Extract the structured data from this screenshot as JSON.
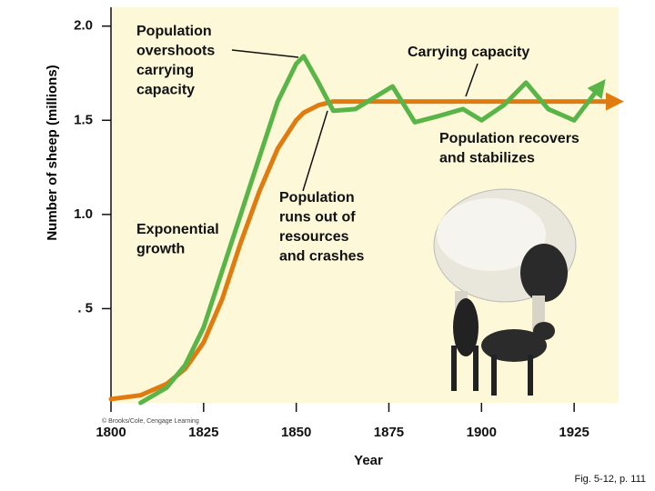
{
  "chart_data": {
    "type": "line",
    "x_label": "Year",
    "y_label": "Number of sheep (millions)",
    "x": [
      1800,
      1808,
      1815,
      1820,
      1825,
      1830,
      1835,
      1840,
      1845,
      1850,
      1852,
      1856,
      1860,
      1866,
      1871,
      1876,
      1882,
      1888,
      1895,
      1900,
      1906,
      1912,
      1918,
      1925,
      1932,
      1936
    ],
    "series": [
      {
        "color": "#59b548",
        "values": [
          null,
          0.0,
          0.08,
          0.2,
          0.4,
          0.7,
          1.0,
          1.3,
          1.6,
          1.8,
          1.84,
          1.7,
          1.55,
          1.56,
          1.62,
          1.68,
          1.49,
          1.52,
          1.56,
          1.5,
          1.58,
          1.7,
          1.56,
          1.5,
          1.68,
          null
        ]
      },
      {
        "name": "Carrying capacity",
        "color": "#e07b10",
        "values": [
          0.02,
          0.04,
          0.1,
          0.18,
          0.32,
          0.55,
          0.85,
          1.12,
          1.35,
          1.5,
          1.54,
          1.58,
          1.6,
          1.6,
          1.6,
          1.6,
          1.6,
          1.6,
          1.6,
          1.6,
          1.6,
          1.6,
          1.6,
          1.6,
          1.6,
          1.6
        ]
      }
    ],
    "xlim": [
      1800,
      1937
    ],
    "ylim": [
      0,
      2.1
    ],
    "xticks": [
      1800,
      1825,
      1850,
      1875,
      1900,
      1925
    ],
    "yticks": [
      {
        "value": 0.5,
        "label": ". 5"
      },
      {
        "value": 1,
        "label": "1.0"
      },
      1.5,
      {
        "value": 2,
        "label": "2.0"
      }
    ],
    "background": "#fdf8d8",
    "annotations": [
      {
        "lines": [
          "Population",
          "overshoots",
          "carrying",
          "capacity"
        ]
      },
      {
        "lines": [
          "Population recovers",
          "and stabilizes"
        ]
      },
      {
        "lines": [
          "Exponential",
          "growth"
        ]
      },
      {
        "lines": [
          "Population",
          "runs out of",
          "resources",
          "and crashes"
        ]
      }
    ],
    "credit": "© Brooks/Cole, Cengage Learning",
    "source": "Fig. 5-12, p. 111"
  }
}
